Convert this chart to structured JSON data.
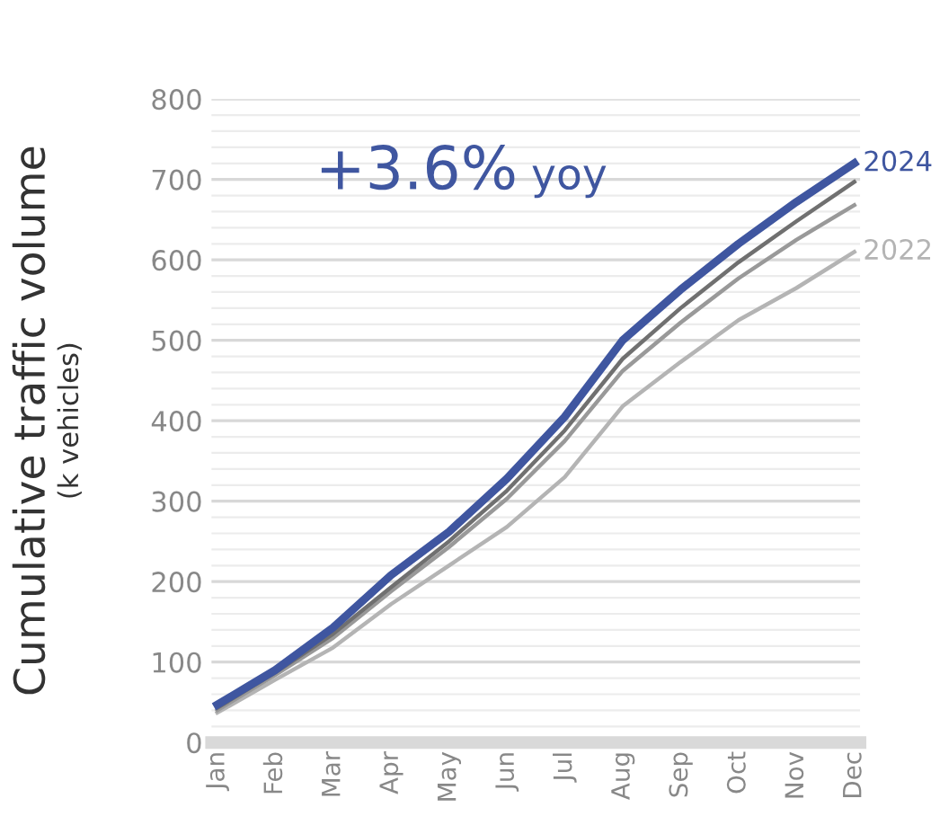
{
  "chart_data": {
    "type": "line",
    "ylabel": "Cumulative traffic volume\n(k vehicles)",
    "annotations": [
      "+3.6% yoy"
    ],
    "categories": [
      "Jan",
      "Feb",
      "Mar",
      "Apr",
      "May",
      "Jun",
      "Jul",
      "Aug",
      "Sep",
      "Oct",
      "Nov",
      "Dec"
    ],
    "series": [
      {
        "color": "#b4b4b4",
        "name": "2022",
        "values": [
          37,
          78,
          118,
          172,
          220,
          268,
          330,
          418,
          473,
          525,
          565,
          610
        ]
      },
      {
        "color": "#999999",
        "values": [
          40,
          84,
          130,
          188,
          243,
          303,
          375,
          462,
          522,
          577,
          625,
          668
        ]
      },
      {
        "color": "#707070",
        "values": [
          43,
          87,
          135,
          193,
          250,
          313,
          388,
          477,
          540,
          597,
          648,
          697
        ]
      },
      {
        "color": "#3f56a0",
        "name": "2024",
        "values": [
          47,
          90,
          143,
          208,
          262,
          328,
          405,
          500,
          563,
          620,
          672,
          720
        ]
      }
    ],
    "ylim": [
      0,
      800
    ],
    "yticks": [
      0,
      100,
      200,
      300,
      400,
      500,
      600,
      700,
      800
    ],
    "grid": "y",
    "legend": false,
    "marker": "none",
    "line_style": "solid"
  }
}
